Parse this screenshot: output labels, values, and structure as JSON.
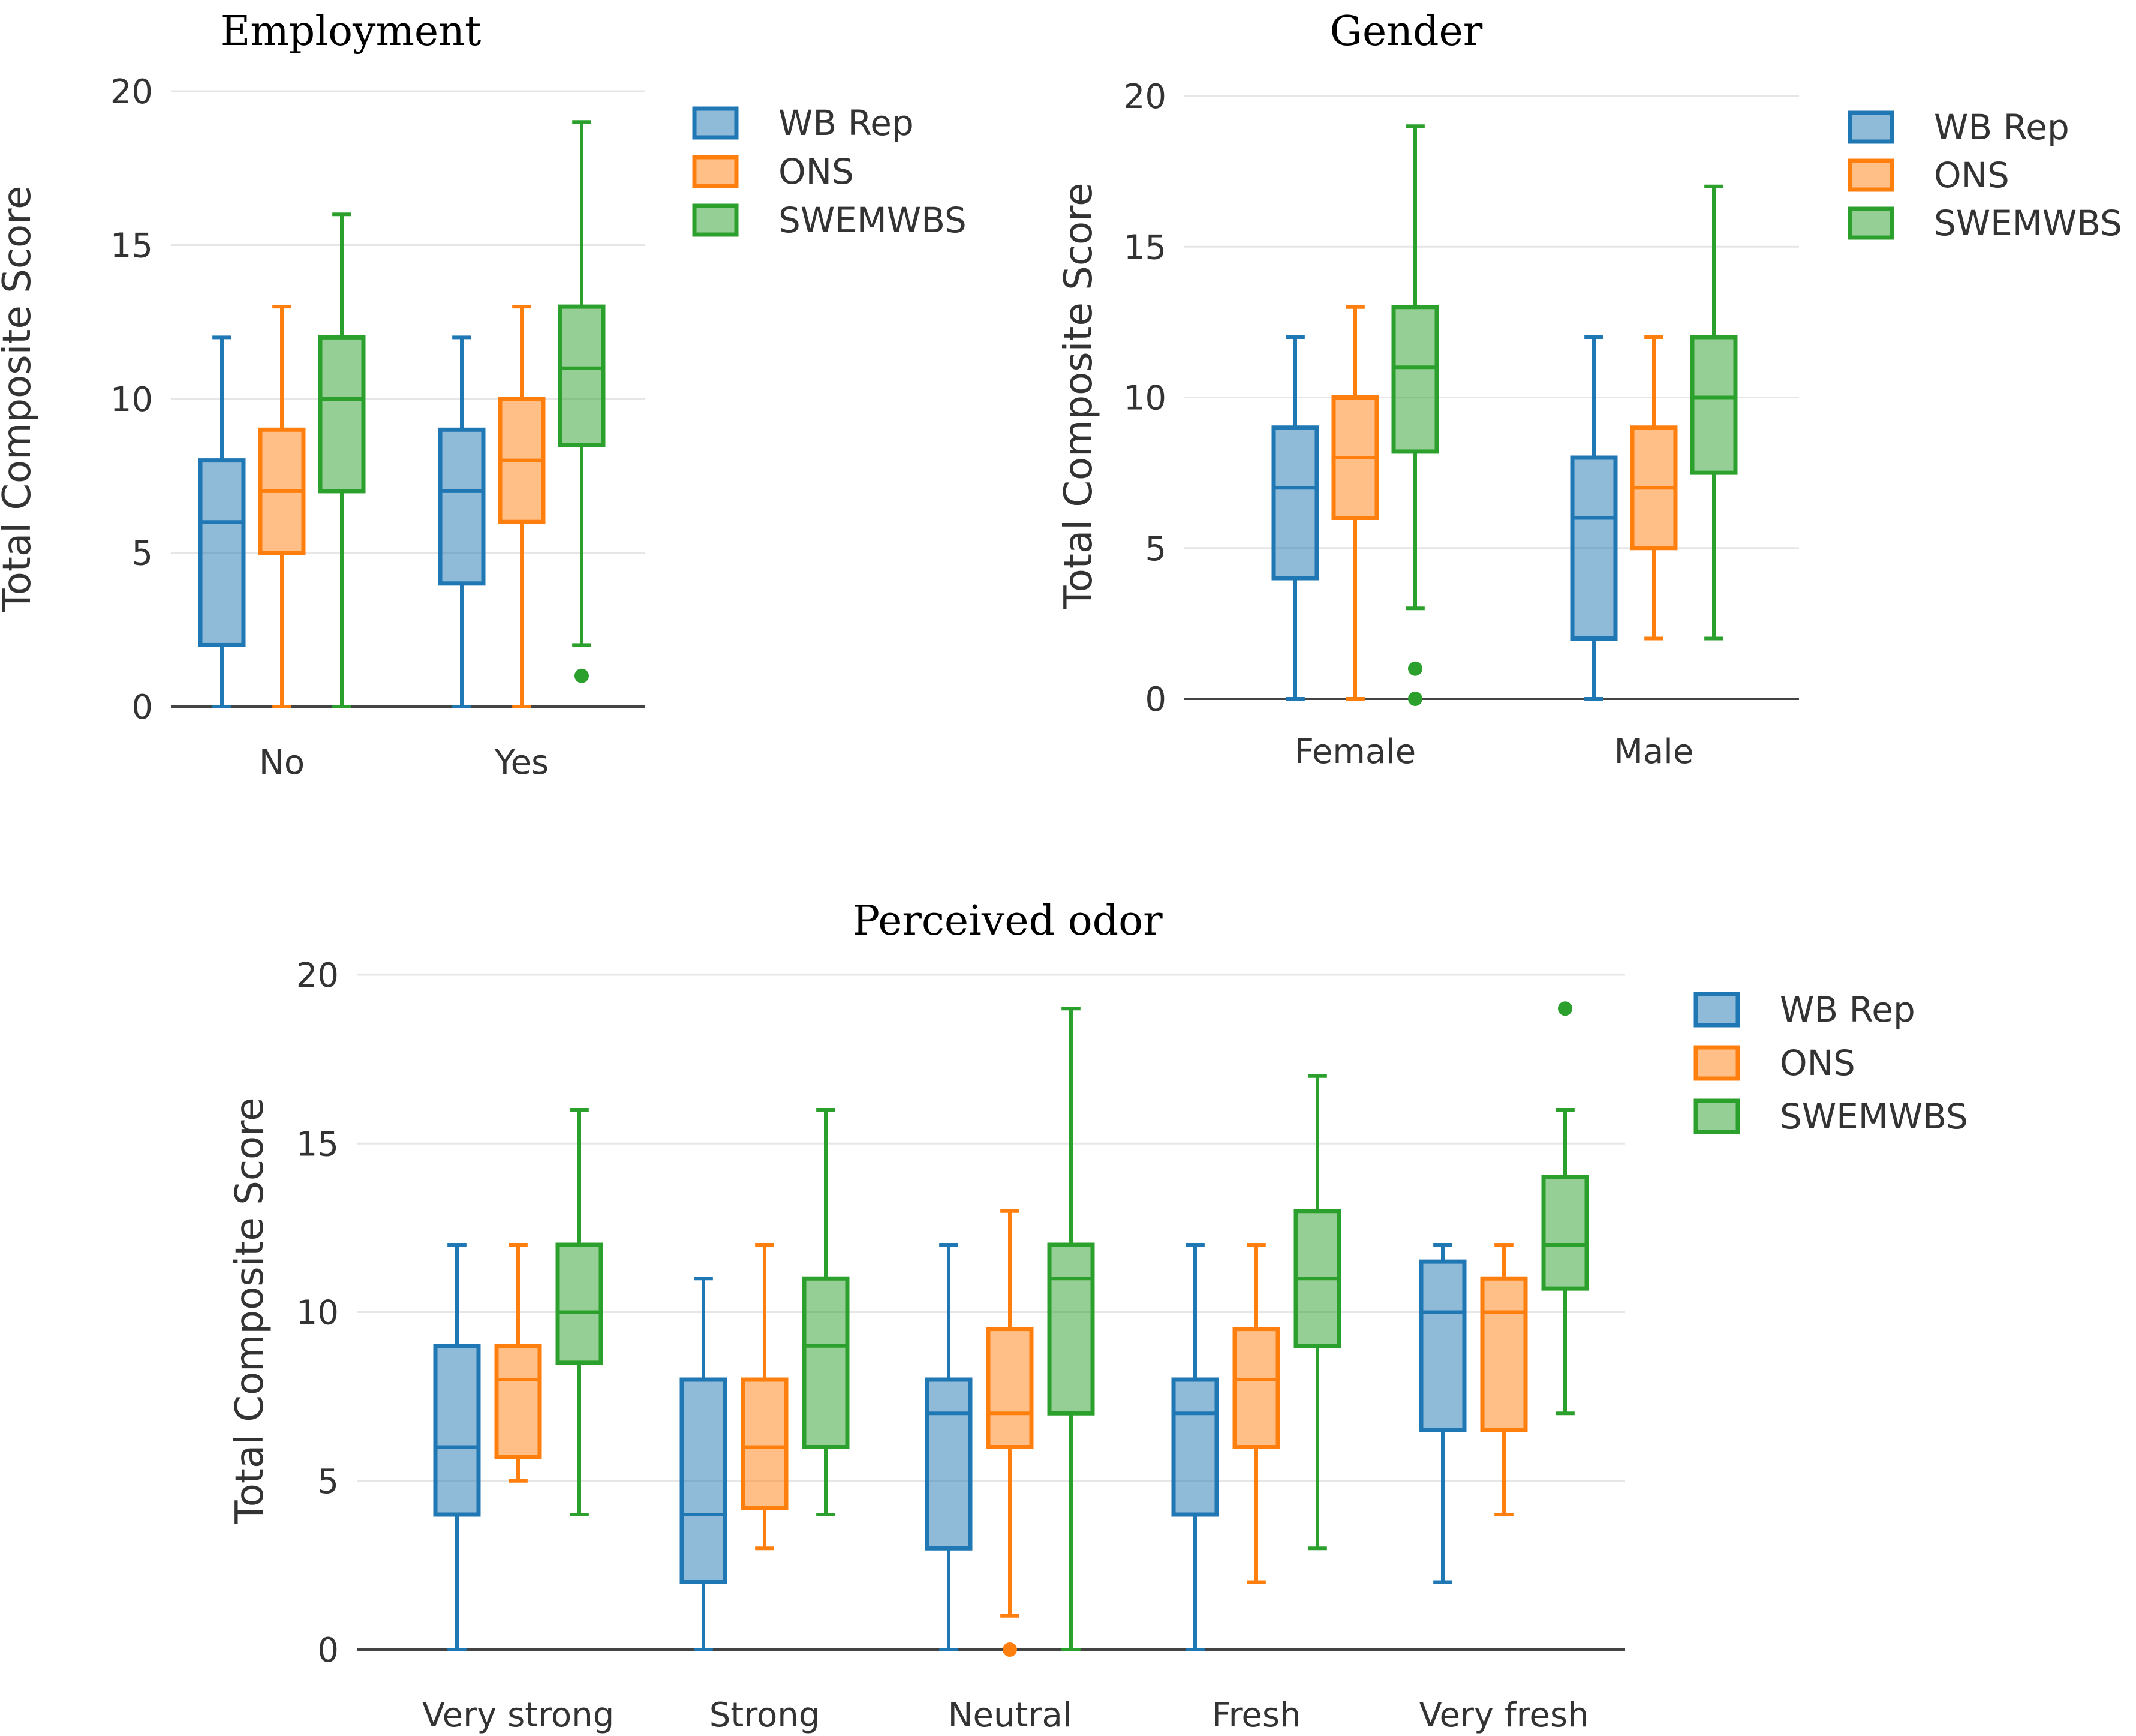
{
  "colors": {
    "wb_rep": "#1f77b4",
    "ons": "#ff7f0e",
    "swemwbs": "#2ca02c"
  },
  "chart_data": [
    {
      "type": "box",
      "title": "Employment",
      "ylabel": "Total Composite Score",
      "ylim": [
        0,
        20
      ],
      "yticks": [
        0,
        5,
        10,
        15,
        20
      ],
      "categories": [
        "No",
        "Yes"
      ],
      "legend": [
        "WB Rep",
        "ONS",
        "SWEMWBS"
      ],
      "series": [
        {
          "name": "WB Rep",
          "color": "#1f77b4",
          "boxes": [
            {
              "min": 0,
              "q1": 2,
              "median": 6,
              "q3": 8,
              "max": 12,
              "outliers": []
            },
            {
              "min": 0,
              "q1": 4,
              "median": 7,
              "q3": 9,
              "max": 12,
              "outliers": []
            }
          ]
        },
        {
          "name": "ONS",
          "color": "#ff7f0e",
          "boxes": [
            {
              "min": 0,
              "q1": 5,
              "median": 7,
              "q3": 9,
              "max": 13,
              "outliers": []
            },
            {
              "min": 0,
              "q1": 6,
              "median": 8,
              "q3": 10,
              "max": 13,
              "outliers": []
            }
          ]
        },
        {
          "name": "SWEMWBS",
          "color": "#2ca02c",
          "boxes": [
            {
              "min": 0,
              "q1": 7,
              "median": 10,
              "q3": 12,
              "max": 16,
              "outliers": []
            },
            {
              "min": 2,
              "q1": 8.5,
              "median": 11,
              "q3": 13,
              "max": 19,
              "outliers": [
                1
              ]
            }
          ]
        }
      ]
    },
    {
      "type": "box",
      "title": "Gender",
      "ylabel": "Total Composite Score",
      "ylim": [
        0,
        20
      ],
      "yticks": [
        0,
        5,
        10,
        15,
        20
      ],
      "categories": [
        "Female",
        "Male"
      ],
      "legend": [
        "WB Rep",
        "ONS",
        "SWEMWBS"
      ],
      "series": [
        {
          "name": "WB Rep",
          "color": "#1f77b4",
          "boxes": [
            {
              "min": 0,
              "q1": 4,
              "median": 7,
              "q3": 9,
              "max": 12,
              "outliers": []
            },
            {
              "min": 0,
              "q1": 2,
              "median": 6,
              "q3": 8,
              "max": 12,
              "outliers": []
            }
          ]
        },
        {
          "name": "ONS",
          "color": "#ff7f0e",
          "boxes": [
            {
              "min": 0,
              "q1": 6,
              "median": 8,
              "q3": 10,
              "max": 13,
              "outliers": []
            },
            {
              "min": 2,
              "q1": 5,
              "median": 7,
              "q3": 9,
              "max": 12,
              "outliers": []
            }
          ]
        },
        {
          "name": "SWEMWBS",
          "color": "#2ca02c",
          "boxes": [
            {
              "min": 3,
              "q1": 8.2,
              "median": 11,
              "q3": 13,
              "max": 19,
              "outliers": [
                1,
                0
              ]
            },
            {
              "min": 2,
              "q1": 7.5,
              "median": 10,
              "q3": 12,
              "max": 17,
              "outliers": []
            }
          ]
        }
      ]
    },
    {
      "type": "box",
      "title": "Perceived odor",
      "ylabel": "Total Composite Score",
      "ylim": [
        0,
        20
      ],
      "yticks": [
        0,
        5,
        10,
        15,
        20
      ],
      "categories": [
        "Very strong",
        "Strong",
        "Neutral",
        "Fresh",
        "Very fresh"
      ],
      "legend": [
        "WB Rep",
        "ONS",
        "SWEMWBS"
      ],
      "series": [
        {
          "name": "WB Rep",
          "color": "#1f77b4",
          "boxes": [
            {
              "min": 0,
              "q1": 4,
              "median": 6,
              "q3": 9,
              "max": 12,
              "outliers": []
            },
            {
              "min": 0,
              "q1": 2,
              "median": 4,
              "q3": 8,
              "max": 11,
              "outliers": []
            },
            {
              "min": 0,
              "q1": 3,
              "median": 7,
              "q3": 8,
              "max": 12,
              "outliers": []
            },
            {
              "min": 0,
              "q1": 4,
              "median": 7,
              "q3": 8,
              "max": 12,
              "outliers": []
            },
            {
              "min": 2,
              "q1": 6.5,
              "median": 10,
              "q3": 11.5,
              "max": 12,
              "outliers": []
            }
          ]
        },
        {
          "name": "ONS",
          "color": "#ff7f0e",
          "boxes": [
            {
              "min": 5,
              "q1": 5.7,
              "median": 8,
              "q3": 9,
              "max": 12,
              "outliers": []
            },
            {
              "min": 3,
              "q1": 4.2,
              "median": 6,
              "q3": 8,
              "max": 12,
              "outliers": []
            },
            {
              "min": 1,
              "q1": 6,
              "median": 7,
              "q3": 9.5,
              "max": 13,
              "outliers": [
                0
              ]
            },
            {
              "min": 2,
              "q1": 6,
              "median": 8,
              "q3": 9.5,
              "max": 12,
              "outliers": []
            },
            {
              "min": 4,
              "q1": 6.5,
              "median": 10,
              "q3": 11,
              "max": 12,
              "outliers": []
            }
          ]
        },
        {
          "name": "SWEMWBS",
          "color": "#2ca02c",
          "boxes": [
            {
              "min": 4,
              "q1": 8.5,
              "median": 10,
              "q3": 12,
              "max": 16,
              "outliers": []
            },
            {
              "min": 4,
              "q1": 6,
              "median": 9,
              "q3": 11,
              "max": 16,
              "outliers": []
            },
            {
              "min": 0,
              "q1": 7,
              "median": 11,
              "q3": 12,
              "max": 19,
              "outliers": []
            },
            {
              "min": 3,
              "q1": 9,
              "median": 11,
              "q3": 13,
              "max": 17,
              "outliers": []
            },
            {
              "min": 7,
              "q1": 10.7,
              "median": 12,
              "q3": 14,
              "max": 16,
              "outliers": [
                19
              ]
            }
          ]
        }
      ]
    }
  ]
}
